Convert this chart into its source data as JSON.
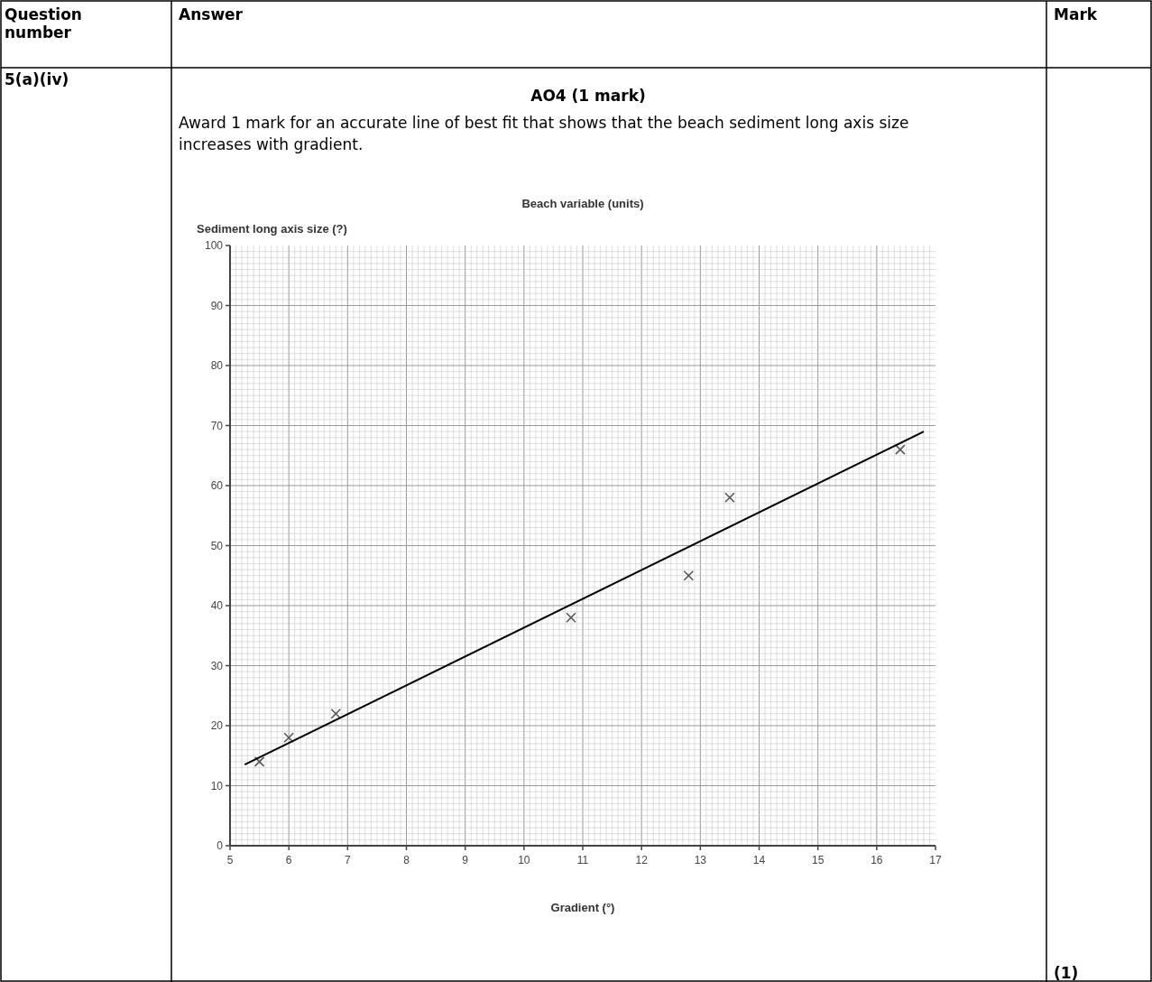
{
  "chart_data": {
    "type": "scatter",
    "title": "Beach variable (units)",
    "xlabel": "Gradient (°)",
    "ylabel": "Sediment long axis size (?)",
    "annotations": [
      "Question number",
      "Answer",
      "Mark",
      "5(a)(iv)",
      "AO4 (1 mark)",
      "Award 1 mark for an accurate line of best fit that shows that the beach sediment long axis size increases with gradient.",
      "(1)"
    ],
    "xlim": [
      5,
      17
    ],
    "xticks": [
      5,
      6,
      7,
      8,
      9,
      10,
      11,
      12,
      13,
      14,
      15,
      16,
      17
    ],
    "ylim": [
      0,
      100
    ],
    "yticks": [
      0,
      10,
      20,
      30,
      40,
      50,
      60,
      70,
      80,
      90,
      100
    ],
    "grid": true,
    "marker": "cross",
    "series": [
      {
        "color": "#555555",
        "x": [
          5.5,
          6,
          6.8,
          10.8,
          12.8,
          13.5,
          16.4
        ],
        "values": [
          14,
          18,
          22,
          38,
          45,
          58,
          66
        ]
      },
      {
        "type": "line",
        "color": "#000000",
        "x": [
          5.25,
          16.8
        ],
        "values": [
          13.5,
          69
        ],
        "line_style": "solid",
        "marker": "none"
      }
    ]
  }
}
